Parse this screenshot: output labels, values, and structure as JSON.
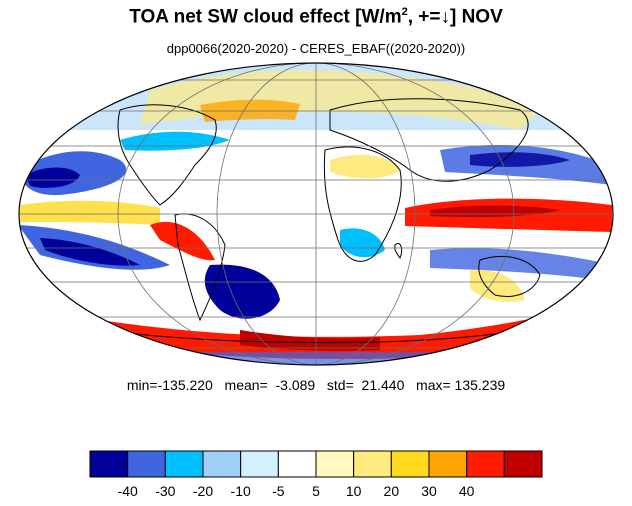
{
  "title": {
    "main": "TOA net SW cloud effect [W/m",
    "sup": "2",
    "tail": ", +=↓]  NOV"
  },
  "subtitle": "dpp0066(2020-2020) - CERES_EBAF((2020-2020))",
  "stats": {
    "min_label": "min=",
    "min": "-135.220",
    "mean_label": "mean=",
    "mean": "-3.089",
    "std_label": "std=",
    "std": "21.440",
    "max_label": "max=",
    "max": "135.239"
  },
  "colorbar": {
    "colors": [
      "#00009a",
      "#4065e0",
      "#00bfff",
      "#a0d0f8",
      "#d4f0ff",
      "#ffffff",
      "#fff8c0",
      "#ffea80",
      "#ffd820",
      "#ffa500",
      "#ff1a00",
      "#c00000"
    ],
    "tick_labels": [
      "-40",
      "-30",
      "-20",
      "-10",
      "-5",
      "5",
      "10",
      "20",
      "30",
      "40"
    ]
  },
  "map": {
    "projection": "Mollweide",
    "graticule": true,
    "coastlines": true,
    "colors": {
      "strong_negative": "#00009a",
      "negative": "#4065e0",
      "moderate_negative": "#00bfff",
      "weak_negative": "#a0d0f8",
      "near_zero": "#ffffff",
      "weak_positive": "#ffea80",
      "positive": "#ffa500",
      "strong_positive": "#ff1a00",
      "very_strong_positive": "#c00000",
      "coastline": "#000000",
      "grid": "#6e6e6e"
    }
  }
}
